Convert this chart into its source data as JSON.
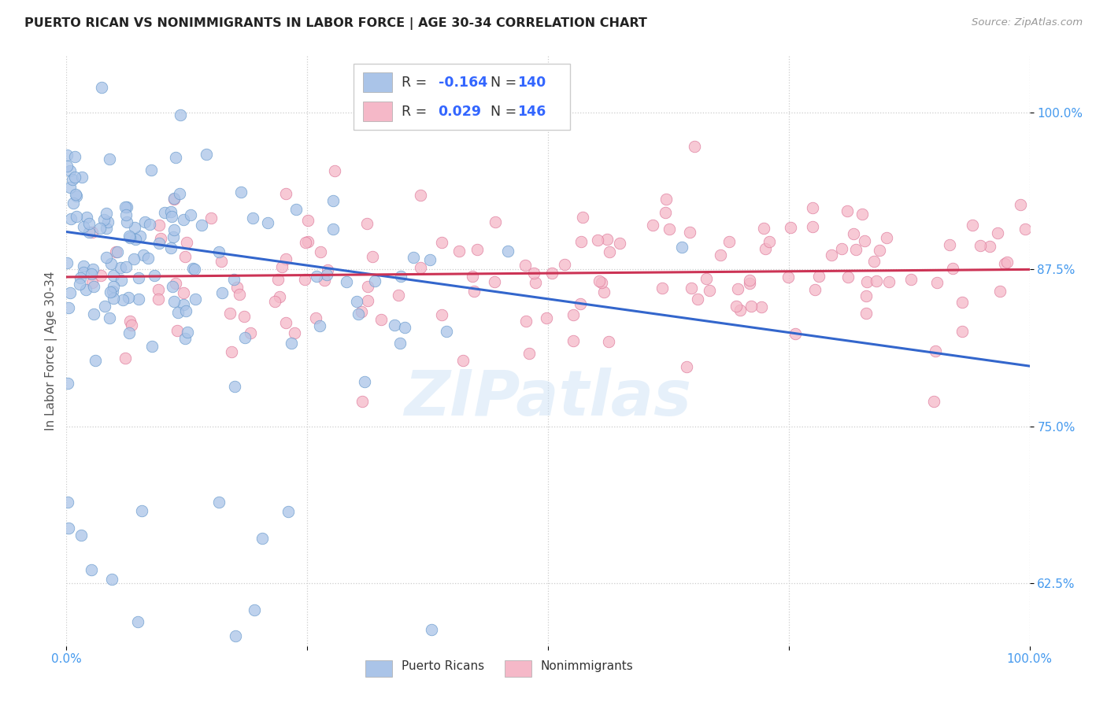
{
  "title": "PUERTO RICAN VS NONIMMIGRANTS IN LABOR FORCE | AGE 30-34 CORRELATION CHART",
  "source": "Source: ZipAtlas.com",
  "ylabel": "In Labor Force | Age 30-34",
  "ytick_labels": [
    "62.5%",
    "75.0%",
    "87.5%",
    "100.0%"
  ],
  "ytick_values": [
    0.625,
    0.75,
    0.875,
    1.0
  ],
  "xlim": [
    0.0,
    1.0
  ],
  "ylim": [
    0.575,
    1.045
  ],
  "blue_color": "#aac4e8",
  "blue_edge_color": "#6699cc",
  "blue_line_color": "#3366cc",
  "pink_color": "#f5b8c8",
  "pink_edge_color": "#dd7799",
  "pink_line_color": "#cc3355",
  "watermark": "ZIPatlas",
  "legend_R_blue": "-0.164",
  "legend_N_blue": "140",
  "legend_R_pink": "0.029",
  "legend_N_pink": "146",
  "blue_line_start_x": 0.0,
  "blue_line_start_y": 0.905,
  "blue_line_end_x": 1.0,
  "blue_line_end_y": 0.798,
  "pink_line_start_x": 0.0,
  "pink_line_start_y": 0.869,
  "pink_line_end_x": 1.0,
  "pink_line_end_y": 0.875
}
